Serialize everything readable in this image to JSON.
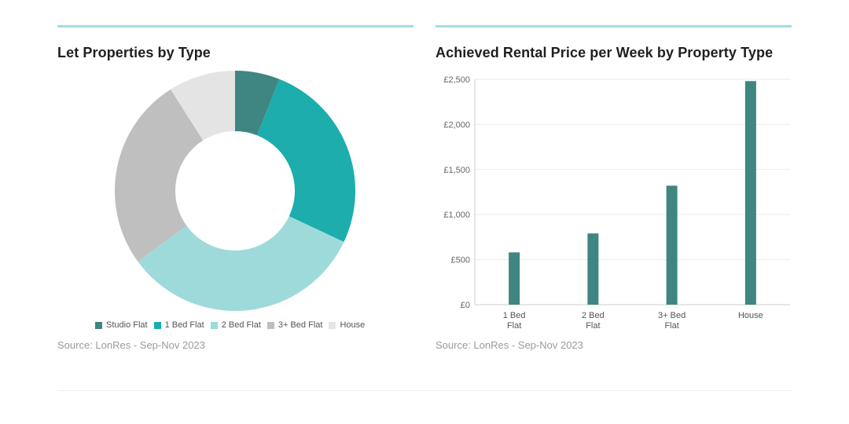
{
  "donut": {
    "title": "Let Properties by Type",
    "source": "Source: LonRes - Sep-Nov 2023"
  },
  "bar": {
    "title": "Achieved Rental Price per Week by Property Type",
    "source": "Source: LonRes - Sep-Nov 2023"
  },
  "colors": {
    "accent_rule": "#a6dde2",
    "studio_flat": "#3f8581",
    "one_bed_flat": "#1cadac",
    "two_bed_flat": "#9fdadb",
    "three_plus_bed_flat": "#bfbfbf",
    "house": "#e4e4e4",
    "bar": "#3f8581"
  },
  "chart_data": [
    {
      "type": "pie",
      "title": "Let Properties by Type",
      "categories": [
        "Studio Flat",
        "1 Bed Flat",
        "2 Bed Flat",
        "3+ Bed Flat",
        "House"
      ],
      "values": [
        6,
        26,
        33,
        26,
        9
      ],
      "colors": [
        "#3f8581",
        "#1cadac",
        "#9fdadb",
        "#bfbfbf",
        "#e4e4e4"
      ],
      "donut": true,
      "legend": "bottom"
    },
    {
      "type": "bar",
      "title": "Achieved Rental Price per Week by Property Type",
      "categories": [
        "1 Bed\nFlat",
        "2 Bed\nFlat",
        "3+ Bed\nFlat",
        "House"
      ],
      "values": [
        580,
        790,
        1320,
        2480
      ],
      "ylim": [
        0,
        2500
      ],
      "yticks": [
        "£0",
        "£500",
        "£1,000",
        "£1,500",
        "£2,000",
        "£2,500"
      ],
      "ytick_values": [
        0,
        500,
        1000,
        1500,
        2000,
        2500
      ],
      "grid": true,
      "color": "#3f8581"
    }
  ]
}
